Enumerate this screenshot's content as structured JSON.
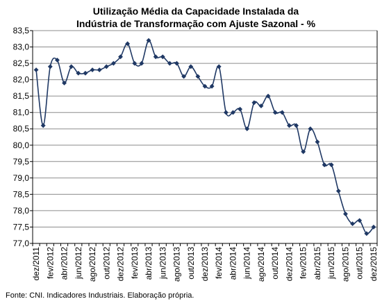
{
  "chart_data": {
    "type": "line",
    "title": "Utilização Média da Capacidade Instalada da",
    "subtitle": "Indústria de Transformação com Ajuste Sazonal - %",
    "xlabel": "",
    "ylabel": "",
    "ylim": [
      77.0,
      83.5
    ],
    "y_ticks": [
      "83,5",
      "83,0",
      "82,5",
      "82,0",
      "81,5",
      "81,0",
      "80,5",
      "80,0",
      "79,5",
      "79,0",
      "78,5",
      "78,0",
      "77,5",
      "77,0"
    ],
    "x_tick_labels": [
      "dez/2011",
      "fev/2012",
      "abr/2012",
      "jun/2012",
      "ago/2012",
      "out/2012",
      "dez/2012",
      "fev/2013",
      "abr/2013",
      "jun/2013",
      "ago/2013",
      "out/2013",
      "dez/2013",
      "fev/2014",
      "abr/2014",
      "jun/2014",
      "ago/2014",
      "out/2014",
      "dez/2014",
      "fev/2015",
      "abr/2015",
      "jun/2015",
      "ago/2015",
      "out/2015",
      "dez/2015"
    ],
    "grid": true,
    "legend": "none",
    "line_color": "#1F3864",
    "series": [
      {
        "values": [
          82.3,
          80.6,
          82.4,
          82.6,
          81.9,
          82.4,
          82.2,
          82.2,
          82.3,
          82.3,
          82.4,
          82.5,
          82.7,
          83.1,
          82.5,
          82.5,
          83.2,
          82.7,
          82.7,
          82.5,
          82.5,
          82.1,
          82.4,
          82.1,
          81.8,
          81.8,
          82.4,
          81.0,
          81.0,
          81.1,
          80.5,
          81.3,
          81.2,
          81.5,
          81.0,
          81.0,
          80.6,
          80.6,
          79.8,
          80.5,
          80.1,
          79.4,
          79.4,
          78.6,
          77.9,
          77.6,
          77.7,
          77.3,
          77.5
        ]
      }
    ]
  },
  "source_text": "Fonte: CNI. Indicadores Industriais. Elaboração própria."
}
